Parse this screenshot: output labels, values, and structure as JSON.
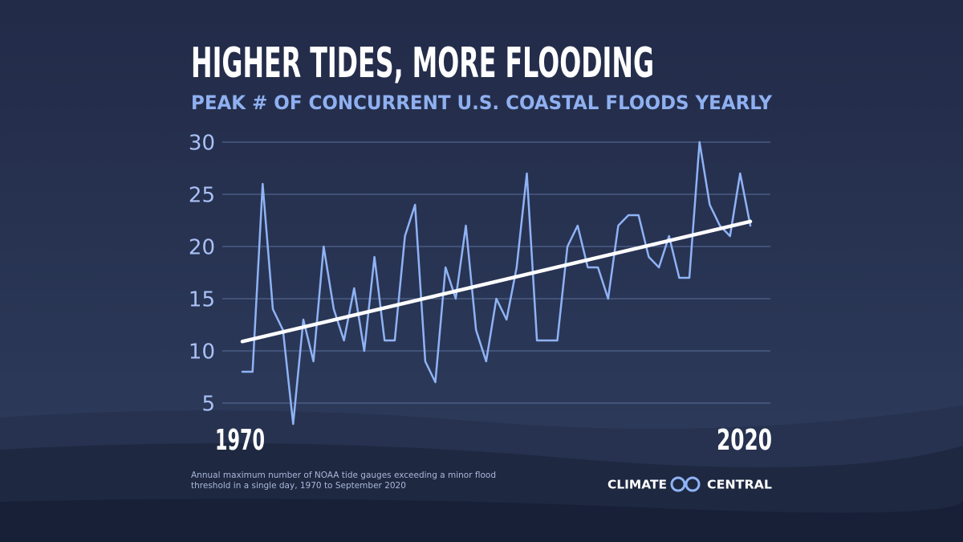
{
  "chart_data": {
    "type": "line",
    "title": "HIGHER TIDES, MORE FLOODING",
    "subtitle": "PEAK # OF CONCURRENT U.S. COASTAL FLOODS YEARLY",
    "x": [
      1970,
      1971,
      1972,
      1973,
      1974,
      1975,
      1976,
      1977,
      1978,
      1979,
      1980,
      1981,
      1982,
      1983,
      1984,
      1985,
      1986,
      1987,
      1988,
      1989,
      1990,
      1991,
      1992,
      1993,
      1994,
      1995,
      1996,
      1997,
      1998,
      1999,
      2000,
      2001,
      2002,
      2003,
      2004,
      2005,
      2006,
      2007,
      2008,
      2009,
      2010,
      2011,
      2012,
      2013,
      2014,
      2015,
      2016,
      2017,
      2018,
      2019,
      2020
    ],
    "series": [
      {
        "color": "#8fb3f5",
        "values": [
          8,
          8,
          26,
          14,
          12,
          3,
          13,
          9,
          20,
          14,
          11,
          16,
          10,
          19,
          11,
          11,
          21,
          24,
          9,
          7,
          18,
          15,
          22,
          12,
          9,
          15,
          13,
          18,
          27,
          11,
          11,
          11,
          20,
          22,
          18,
          18,
          15,
          22,
          23,
          23,
          19,
          18,
          21,
          17,
          17,
          30,
          24,
          22,
          21,
          27,
          22
        ]
      }
    ],
    "trend": {
      "color": "#ffffff",
      "x": [
        1970,
        2020
      ],
      "values": [
        10.9,
        22.4
      ]
    },
    "xlim": [
      1970,
      2020
    ],
    "xticks": [
      1970,
      2020
    ],
    "ylim": [
      3,
      30
    ],
    "yticks": [
      5,
      10,
      15,
      20,
      25,
      30
    ],
    "grid": true,
    "footnote": [
      "Annual maximum number of NOAA tide gauges exceeding a minor flood",
      "threshold in a single day, 1970 to September 2020"
    ],
    "logo": [
      "CLIMATE",
      "CENTRAL"
    ]
  }
}
